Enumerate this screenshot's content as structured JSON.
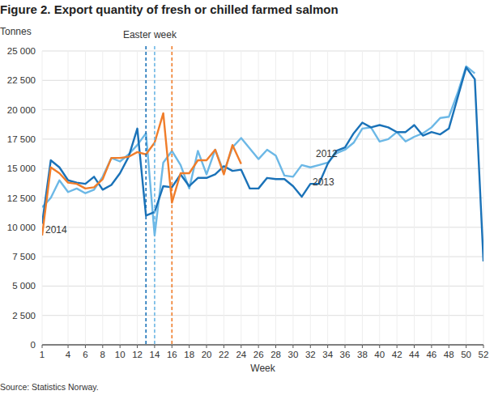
{
  "chart_data": {
    "type": "line",
    "title": "Figure 2. Export quantity of fresh or chilled farmed salmon",
    "y_label": "Tonnes",
    "x_label": "Week",
    "source": "Source: Statistics Norway.",
    "x": [
      1,
      2,
      3,
      4,
      5,
      6,
      7,
      8,
      9,
      10,
      11,
      12,
      13,
      14,
      15,
      16,
      17,
      18,
      19,
      20,
      21,
      22,
      23,
      24,
      25,
      26,
      27,
      28,
      29,
      30,
      31,
      32,
      33,
      34,
      35,
      36,
      37,
      38,
      39,
      40,
      41,
      42,
      43,
      44,
      45,
      46,
      47,
      48,
      49,
      50,
      51,
      52
    ],
    "xlim": [
      1,
      52
    ],
    "xticks": [
      1,
      4,
      6,
      8,
      10,
      12,
      14,
      16,
      18,
      20,
      22,
      24,
      26,
      28,
      30,
      32,
      34,
      36,
      38,
      40,
      42,
      44,
      46,
      48,
      50,
      52
    ],
    "ylim": [
      0,
      25000
    ],
    "yticks": [
      0,
      {
        "value": 2500,
        "label": "2 500"
      },
      {
        "value": 5000,
        "label": "5 000"
      },
      {
        "value": 7500,
        "label": "7 500"
      },
      {
        "value": 10000,
        "label": "10 000"
      },
      {
        "value": 12500,
        "label": "12 500"
      },
      {
        "value": 15000,
        "label": "15 000"
      },
      {
        "value": 17500,
        "label": "17 500"
      },
      {
        "value": 20000,
        "label": "20 000"
      },
      {
        "value": 22500,
        "label": "22 500"
      },
      {
        "value": 25000,
        "label": "25 000"
      }
    ],
    "grid": true,
    "series": [
      {
        "name": "2012",
        "color": "#6cb8e6",
        "values": [
          11700,
          12500,
          14000,
          13000,
          13300,
          12900,
          13200,
          14300,
          15900,
          15600,
          16200,
          17000,
          18000,
          9300,
          15500,
          16500,
          15300,
          13300,
          16500,
          14500,
          16600,
          14700,
          16800,
          17600,
          16700,
          15800,
          16600,
          16100,
          14400,
          14300,
          15300,
          15100,
          15300,
          15500,
          16300,
          16600,
          17200,
          18400,
          18500,
          17300,
          17500,
          18100,
          17300,
          17700,
          18000,
          18500,
          19300,
          19400,
          21400,
          23700,
          23100,
          null
        ]
      },
      {
        "name": "2013",
        "color": "#1a72b8",
        "values": [
          10300,
          15700,
          15100,
          14000,
          13800,
          13700,
          14300,
          13200,
          13600,
          14600,
          16000,
          18400,
          11000,
          11300,
          13500,
          13400,
          14500,
          13500,
          14200,
          14200,
          14500,
          15200,
          14800,
          14900,
          13300,
          13300,
          14200,
          14100,
          14100,
          13500,
          12600,
          13700,
          13700,
          15400,
          16500,
          16800,
          18000,
          18900,
          18500,
          18700,
          18500,
          18100,
          18100,
          18700,
          17800,
          18100,
          17900,
          18400,
          21000,
          23600,
          22600,
          7100
        ]
      },
      {
        "name": "2014",
        "color": "#f07d2a",
        "values": [
          9300,
          15100,
          14600,
          13800,
          13700,
          13300,
          13400,
          14100,
          15900,
          15900,
          16000,
          16400,
          16200,
          17200,
          19700,
          12100,
          14600,
          14600,
          15700,
          15700,
          16600,
          14500,
          17000,
          15400,
          null,
          null,
          null,
          null,
          null,
          null,
          null,
          null,
          null,
          null,
          null,
          null,
          null,
          null,
          null,
          null,
          null,
          null,
          null,
          null,
          null,
          null,
          null,
          null,
          null,
          null,
          null,
          null
        ]
      }
    ],
    "annotations": [
      {
        "text": "Easter week"
      }
    ],
    "reference_lines": [
      {
        "x": 13,
        "color": "#1a72b8"
      },
      {
        "x": 14,
        "color": "#6cb8e6"
      },
      {
        "x": 16,
        "color": "#f07d2a"
      }
    ]
  }
}
